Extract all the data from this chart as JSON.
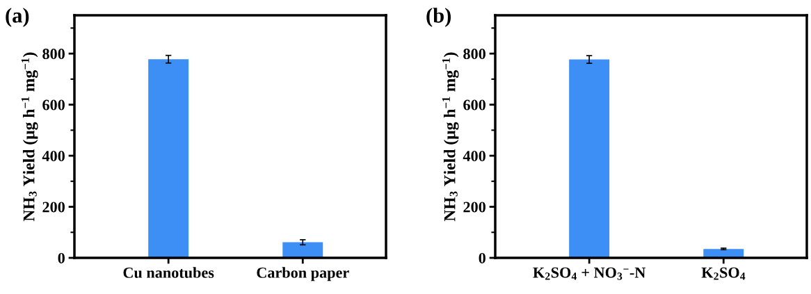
{
  "chart_data": [
    {
      "type": "bar",
      "title": "(a)",
      "ylabel": "NH$_{3}$ Yield (μg h$^{−1}$ mg$^{−1}$)",
      "categories": [
        "Cu nanotubes",
        "Carbon paper"
      ],
      "values": [
        778,
        61
      ],
      "errors": [
        15,
        10
      ],
      "color": "#3d8ef5",
      "ylim": [
        0,
        950
      ],
      "yticks": [
        0,
        200,
        400,
        600,
        800
      ],
      "grid": false
    },
    {
      "type": "bar",
      "title": "(b)",
      "ylabel": "NH$_{3}$ Yield (μg h$^{−1}$ mg$^{−1}$)",
      "categories": [
        "K$_{2}$SO$_{4}$ + NO$_{3}$$^{−}$-N",
        "K$_{2}$SO$_{4}$"
      ],
      "values": [
        777,
        35
      ],
      "errors": [
        15,
        3
      ],
      "color": "#3d8ef5",
      "ylim": [
        0,
        950
      ],
      "yticks": [
        0,
        200,
        400,
        600,
        800
      ],
      "grid": false
    }
  ]
}
